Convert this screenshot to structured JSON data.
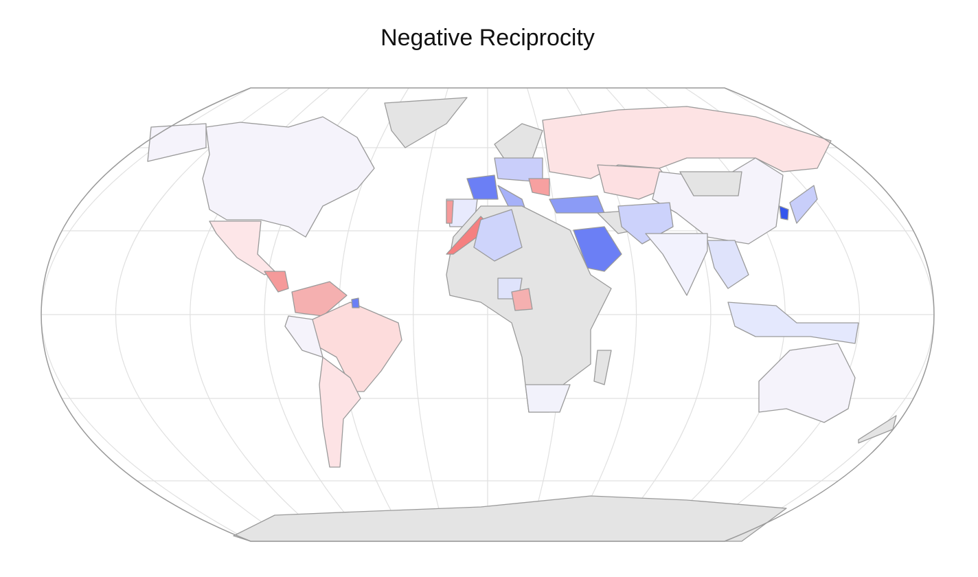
{
  "title": "Negative Reciprocity"
}
